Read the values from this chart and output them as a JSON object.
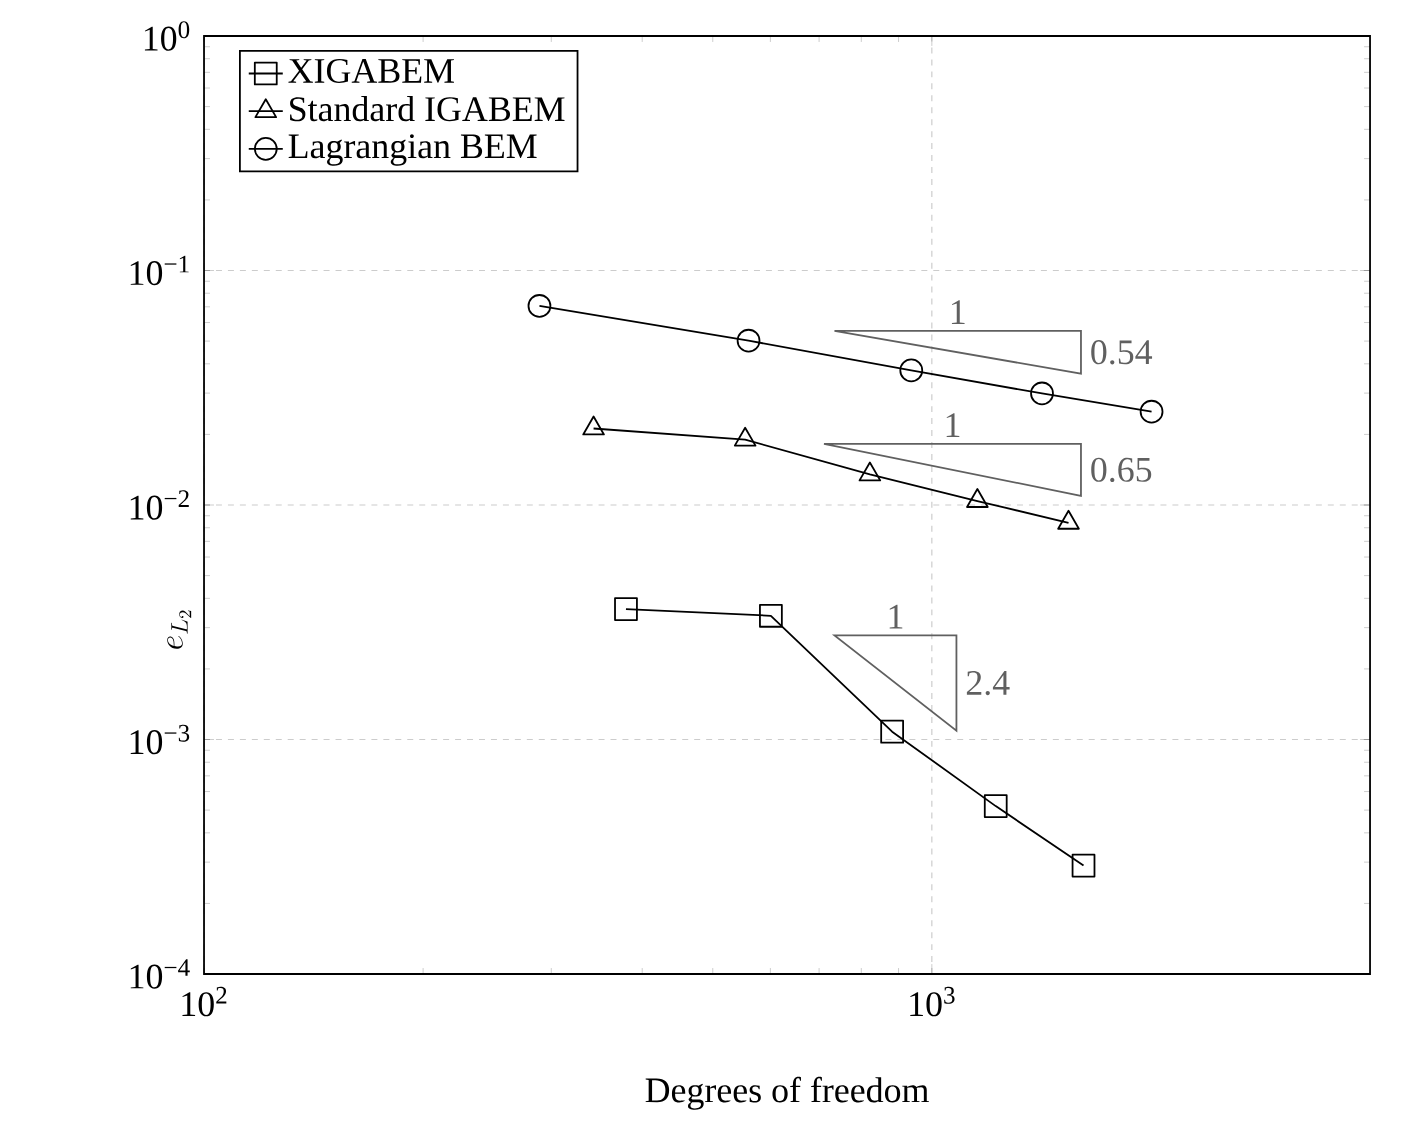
{
  "chart_data": {
    "type": "line",
    "xlabel": "Degrees of freedom",
    "ylabel": "e_{L_2}",
    "log": "xy",
    "grid": true,
    "legend": "top left",
    "line_style": "solid",
    "xlim": [
      100,
      4000
    ],
    "ylim": [
      0.0001,
      1
    ],
    "xticks": [
      {
        "value": 100,
        "label": "10$^{2}$"
      },
      {
        "value": 1000,
        "label": "10$^{3}$"
      }
    ],
    "yticks": [
      {
        "value": 0.0001,
        "label": "10$^{−4}$"
      },
      {
        "value": 0.001,
        "label": "10$^{−3}$"
      },
      {
        "value": 0.01,
        "label": "10$^{−2}$"
      },
      {
        "value": 0.1,
        "label": "10$^{−1}$"
      },
      {
        "value": 1,
        "label": "10$^{0}$"
      }
    ],
    "series": [
      {
        "name": "XIGABEM",
        "color": "#000000",
        "marker": "square",
        "x": [
          380,
          601,
          882,
          1224,
          1616
        ],
        "values": [
          0.0036,
          0.00337,
          0.00108,
          0.00052,
          0.00029
        ]
      },
      {
        "name": "Standard IGABEM",
        "color": "#000000",
        "marker": "triangle",
        "x": [
          343,
          554,
          822,
          1155,
          1541
        ],
        "values": [
          0.0212,
          0.019,
          0.0135,
          0.0104,
          0.0084
        ]
      },
      {
        "name": "Lagrangian BEM",
        "color": "#000000",
        "marker": "circle",
        "x": [
          289,
          560,
          937,
          1417,
          2004
        ],
        "values": [
          0.0706,
          0.0502,
          0.0375,
          0.0299,
          0.025
        ]
      }
    ],
    "annotations": [
      "1",
      "0.54",
      "1",
      "0.65",
      "1",
      "2.4"
    ]
  }
}
